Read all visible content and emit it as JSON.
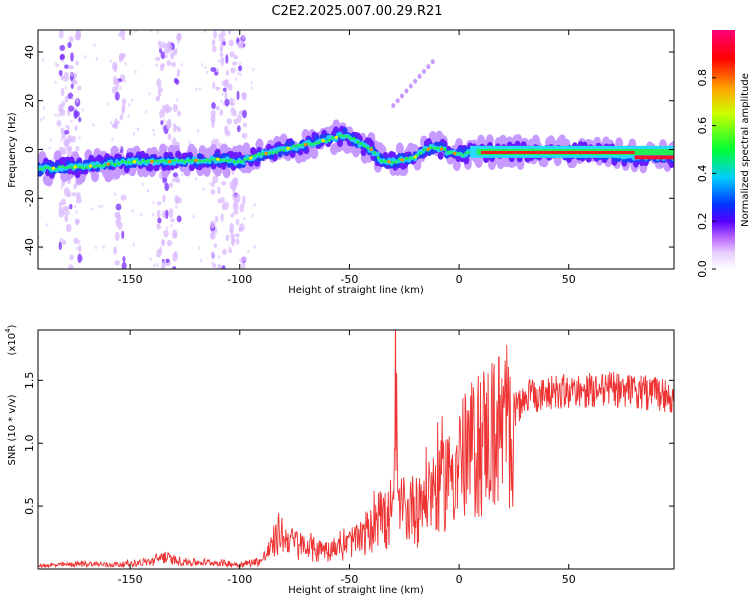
{
  "title": "C2E2.2025.007.00.29.R21",
  "colors": {
    "signal": "#ee3333",
    "background": "#ffffff",
    "axis": "#000000"
  },
  "chart_data": [
    {
      "type": "heatmap",
      "id": "spectrogram",
      "xlabel": "Height of straight line (km)",
      "ylabel": "Frequency (Hz)",
      "xlim": [
        -192,
        98
      ],
      "ylim": [
        -49,
        49
      ],
      "xticks": [
        -150,
        -100,
        -50,
        0,
        50
      ],
      "yticks": [
        -40,
        -20,
        0,
        20,
        40
      ],
      "colorbar": {
        "label": "Normalized spectral amplitude",
        "range": [
          0,
          1
        ],
        "ticks": [
          0.0,
          0.2,
          0.4,
          0.6,
          0.8
        ],
        "colormap": [
          "#ffffff",
          "#cc99ff",
          "#6600ff",
          "#2200ff",
          "#00ccff",
          "#00ff00",
          "#ffff00",
          "#ff6600",
          "#ff0000",
          "#ff0077"
        ]
      },
      "ridge": {
        "x": [
          -192,
          -170,
          -150,
          -130,
          -110,
          -100,
          -90,
          -80,
          -70,
          -60,
          -52,
          -48,
          -45,
          -40,
          -35,
          -30,
          -25,
          -20,
          -15,
          -10,
          -5,
          0,
          10,
          20,
          40,
          60,
          80,
          98
        ],
        "y": [
          -8,
          -7,
          -5,
          -5,
          -4,
          -5,
          -2,
          0,
          2,
          4,
          6,
          4,
          2,
          0,
          -5,
          -5,
          -4,
          -3,
          0,
          1,
          -1,
          -2,
          -1,
          -1,
          -1,
          -1,
          -3,
          -3
        ]
      },
      "vertical_streaks_x": [
        -180,
        -175,
        -155,
        -135,
        -130,
        -110,
        -105,
        -100
      ]
    },
    {
      "type": "line",
      "id": "snr",
      "xlabel": "Height of straight line (km)",
      "ylabel": "SNR (10 * v/v)",
      "scale_label": "(x10",
      "scale_exp": "4",
      "xlim": [
        -192,
        98
      ],
      "ylim": [
        0,
        1.9
      ],
      "xticks": [
        -150,
        -100,
        -50,
        0,
        50
      ],
      "yticks": [
        0.5,
        1.0,
        1.5
      ],
      "ytick_labels": [
        "0.5",
        "1.0",
        "1.5"
      ],
      "series": [
        {
          "x": [
            -192,
            -180,
            -170,
            -160,
            -150,
            -140,
            -135,
            -130,
            -120,
            -110,
            -100,
            -90,
            -85,
            -82,
            -80,
            -75,
            -70,
            -60,
            -50,
            -45,
            -40,
            -36,
            -35,
            -34,
            -30,
            -29,
            -28,
            -25,
            -20,
            -15,
            -10,
            -5,
            0,
            5,
            10,
            15,
            20,
            25,
            30,
            40,
            50,
            60,
            70,
            80,
            90,
            98
          ],
          "y": [
            0.03,
            0.04,
            0.05,
            0.04,
            0.05,
            0.07,
            0.12,
            0.08,
            0.06,
            0.06,
            0.04,
            0.08,
            0.22,
            0.35,
            0.3,
            0.25,
            0.2,
            0.18,
            0.25,
            0.3,
            0.35,
            0.7,
            0.6,
            0.4,
            0.5,
            1.7,
            0.6,
            0.55,
            0.6,
            0.7,
            0.8,
            0.9,
            1.0,
            1.1,
            1.2,
            1.25,
            1.3,
            1.4,
            1.5,
            1.55,
            1.55,
            1.56,
            1.57,
            1.55,
            1.53,
            1.5
          ]
        }
      ]
    }
  ]
}
